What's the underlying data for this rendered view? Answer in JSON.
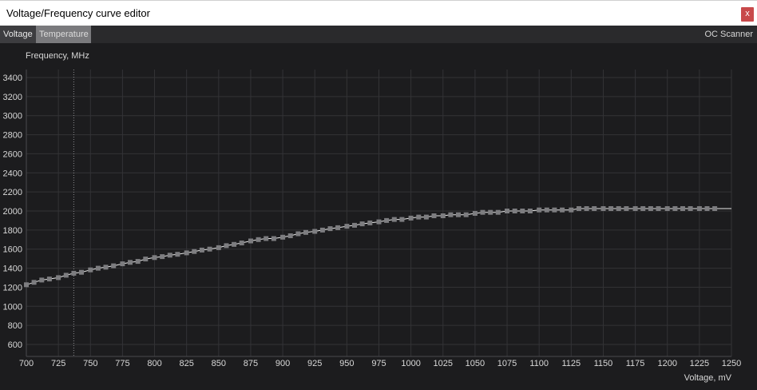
{
  "window": {
    "title": "Voltage/Frequency curve editor",
    "close_label": "x"
  },
  "tabs": [
    {
      "label": "Voltage"
    },
    {
      "label": "Temperature"
    }
  ],
  "oc_scanner": {
    "label": "OC Scanner"
  },
  "colors": {
    "point": "#7d7d80",
    "curve": "#e8e8e8",
    "grid": "#333336",
    "close": "#c8494a"
  },
  "chart_data": {
    "type": "line",
    "ylabel": "Frequency, MHz",
    "xlabel": "Voltage, mV",
    "xlim": [
      700,
      1250
    ],
    "ylim": [
      600,
      3400
    ],
    "x_ticks": [
      700,
      725,
      750,
      775,
      800,
      825,
      850,
      875,
      900,
      925,
      950,
      975,
      1000,
      1025,
      1050,
      1075,
      1100,
      1125,
      1150,
      1175,
      1200,
      1225,
      1250
    ],
    "y_ticks": [
      600,
      800,
      1000,
      1200,
      1400,
      1600,
      1800,
      2000,
      2200,
      2400,
      2600,
      2800,
      3000,
      3200,
      3400
    ],
    "grid": true,
    "cursor_voltage": 737,
    "series": [
      {
        "x": [
          700,
          706,
          712,
          718,
          725,
          731,
          737,
          743,
          750,
          756,
          762,
          768,
          775,
          781,
          787,
          793,
          800,
          806,
          812,
          818,
          825,
          831,
          837,
          843,
          850,
          856,
          862,
          868,
          875,
          881,
          887,
          893,
          900,
          906,
          912,
          918,
          925,
          931,
          937,
          943,
          950,
          956,
          962,
          968,
          975,
          981,
          987,
          993,
          1000,
          1006,
          1012,
          1018,
          1025,
          1031,
          1037,
          1043,
          1050,
          1056,
          1062,
          1068,
          1075,
          1081,
          1087,
          1093,
          1100,
          1106,
          1112,
          1118,
          1125,
          1131,
          1137,
          1143,
          1150,
          1156,
          1162,
          1168,
          1175,
          1181,
          1187,
          1193,
          1200,
          1206,
          1212,
          1218,
          1225,
          1231,
          1237
        ],
        "y": [
          1226,
          1251,
          1276,
          1287,
          1301,
          1326,
          1347,
          1357,
          1382,
          1400,
          1411,
          1425,
          1446,
          1461,
          1471,
          1496,
          1511,
          1521,
          1536,
          1546,
          1561,
          1575,
          1590,
          1600,
          1615,
          1636,
          1650,
          1665,
          1686,
          1700,
          1711,
          1711,
          1725,
          1740,
          1761,
          1775,
          1786,
          1800,
          1815,
          1825,
          1840,
          1850,
          1865,
          1875,
          1886,
          1900,
          1911,
          1911,
          1925,
          1936,
          1936,
          1950,
          1950,
          1961,
          1961,
          1961,
          1975,
          1986,
          1986,
          1986,
          2000,
          2000,
          2000,
          2000,
          2011,
          2011,
          2011,
          2011,
          2011,
          2025,
          2025,
          2025,
          2025,
          2025,
          2025,
          2025,
          2025,
          2025,
          2025,
          2025,
          2025,
          2025,
          2025,
          2025,
          2025,
          2025,
          2025
        ]
      }
    ]
  }
}
